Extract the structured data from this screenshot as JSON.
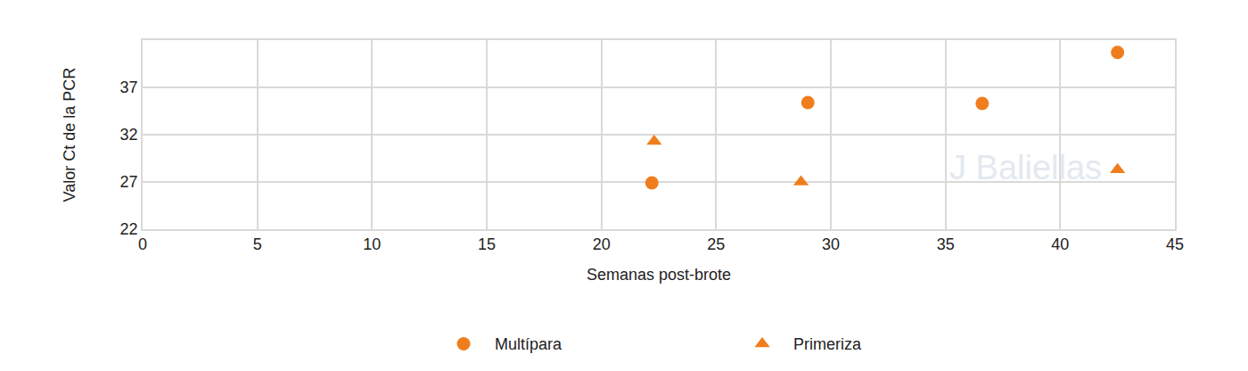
{
  "chart_data": {
    "type": "scatter",
    "x_label": "Semanas post-brote",
    "y_label": "Valor Ct de la PCR",
    "series": [
      {
        "name": "Multípara",
        "color": "#f07d1d",
        "marker": "circle",
        "x": [
          22.2,
          29.0,
          36.6,
          42.5
        ],
        "values": [
          26.9,
          35.4,
          35.3,
          40.7
        ]
      },
      {
        "name": "Primeriza",
        "color": "#f07d1d",
        "marker": "triangle-up",
        "x": [
          22.3,
          28.7,
          42.5
        ],
        "values": [
          31.3,
          27.0,
          28.3
        ]
      }
    ],
    "xlim": [
      0,
      45
    ],
    "xticks": [
      0,
      5,
      10,
      15,
      20,
      25,
      30,
      35,
      40,
      45
    ],
    "ylim": [
      22,
      42
    ],
    "yticks": [
      22,
      27,
      32,
      37
    ],
    "grid": true,
    "legend": "bottom",
    "annotations": [
      {
        "text": "J Baliellas",
        "x": 38.5,
        "y": 28.5
      }
    ]
  }
}
